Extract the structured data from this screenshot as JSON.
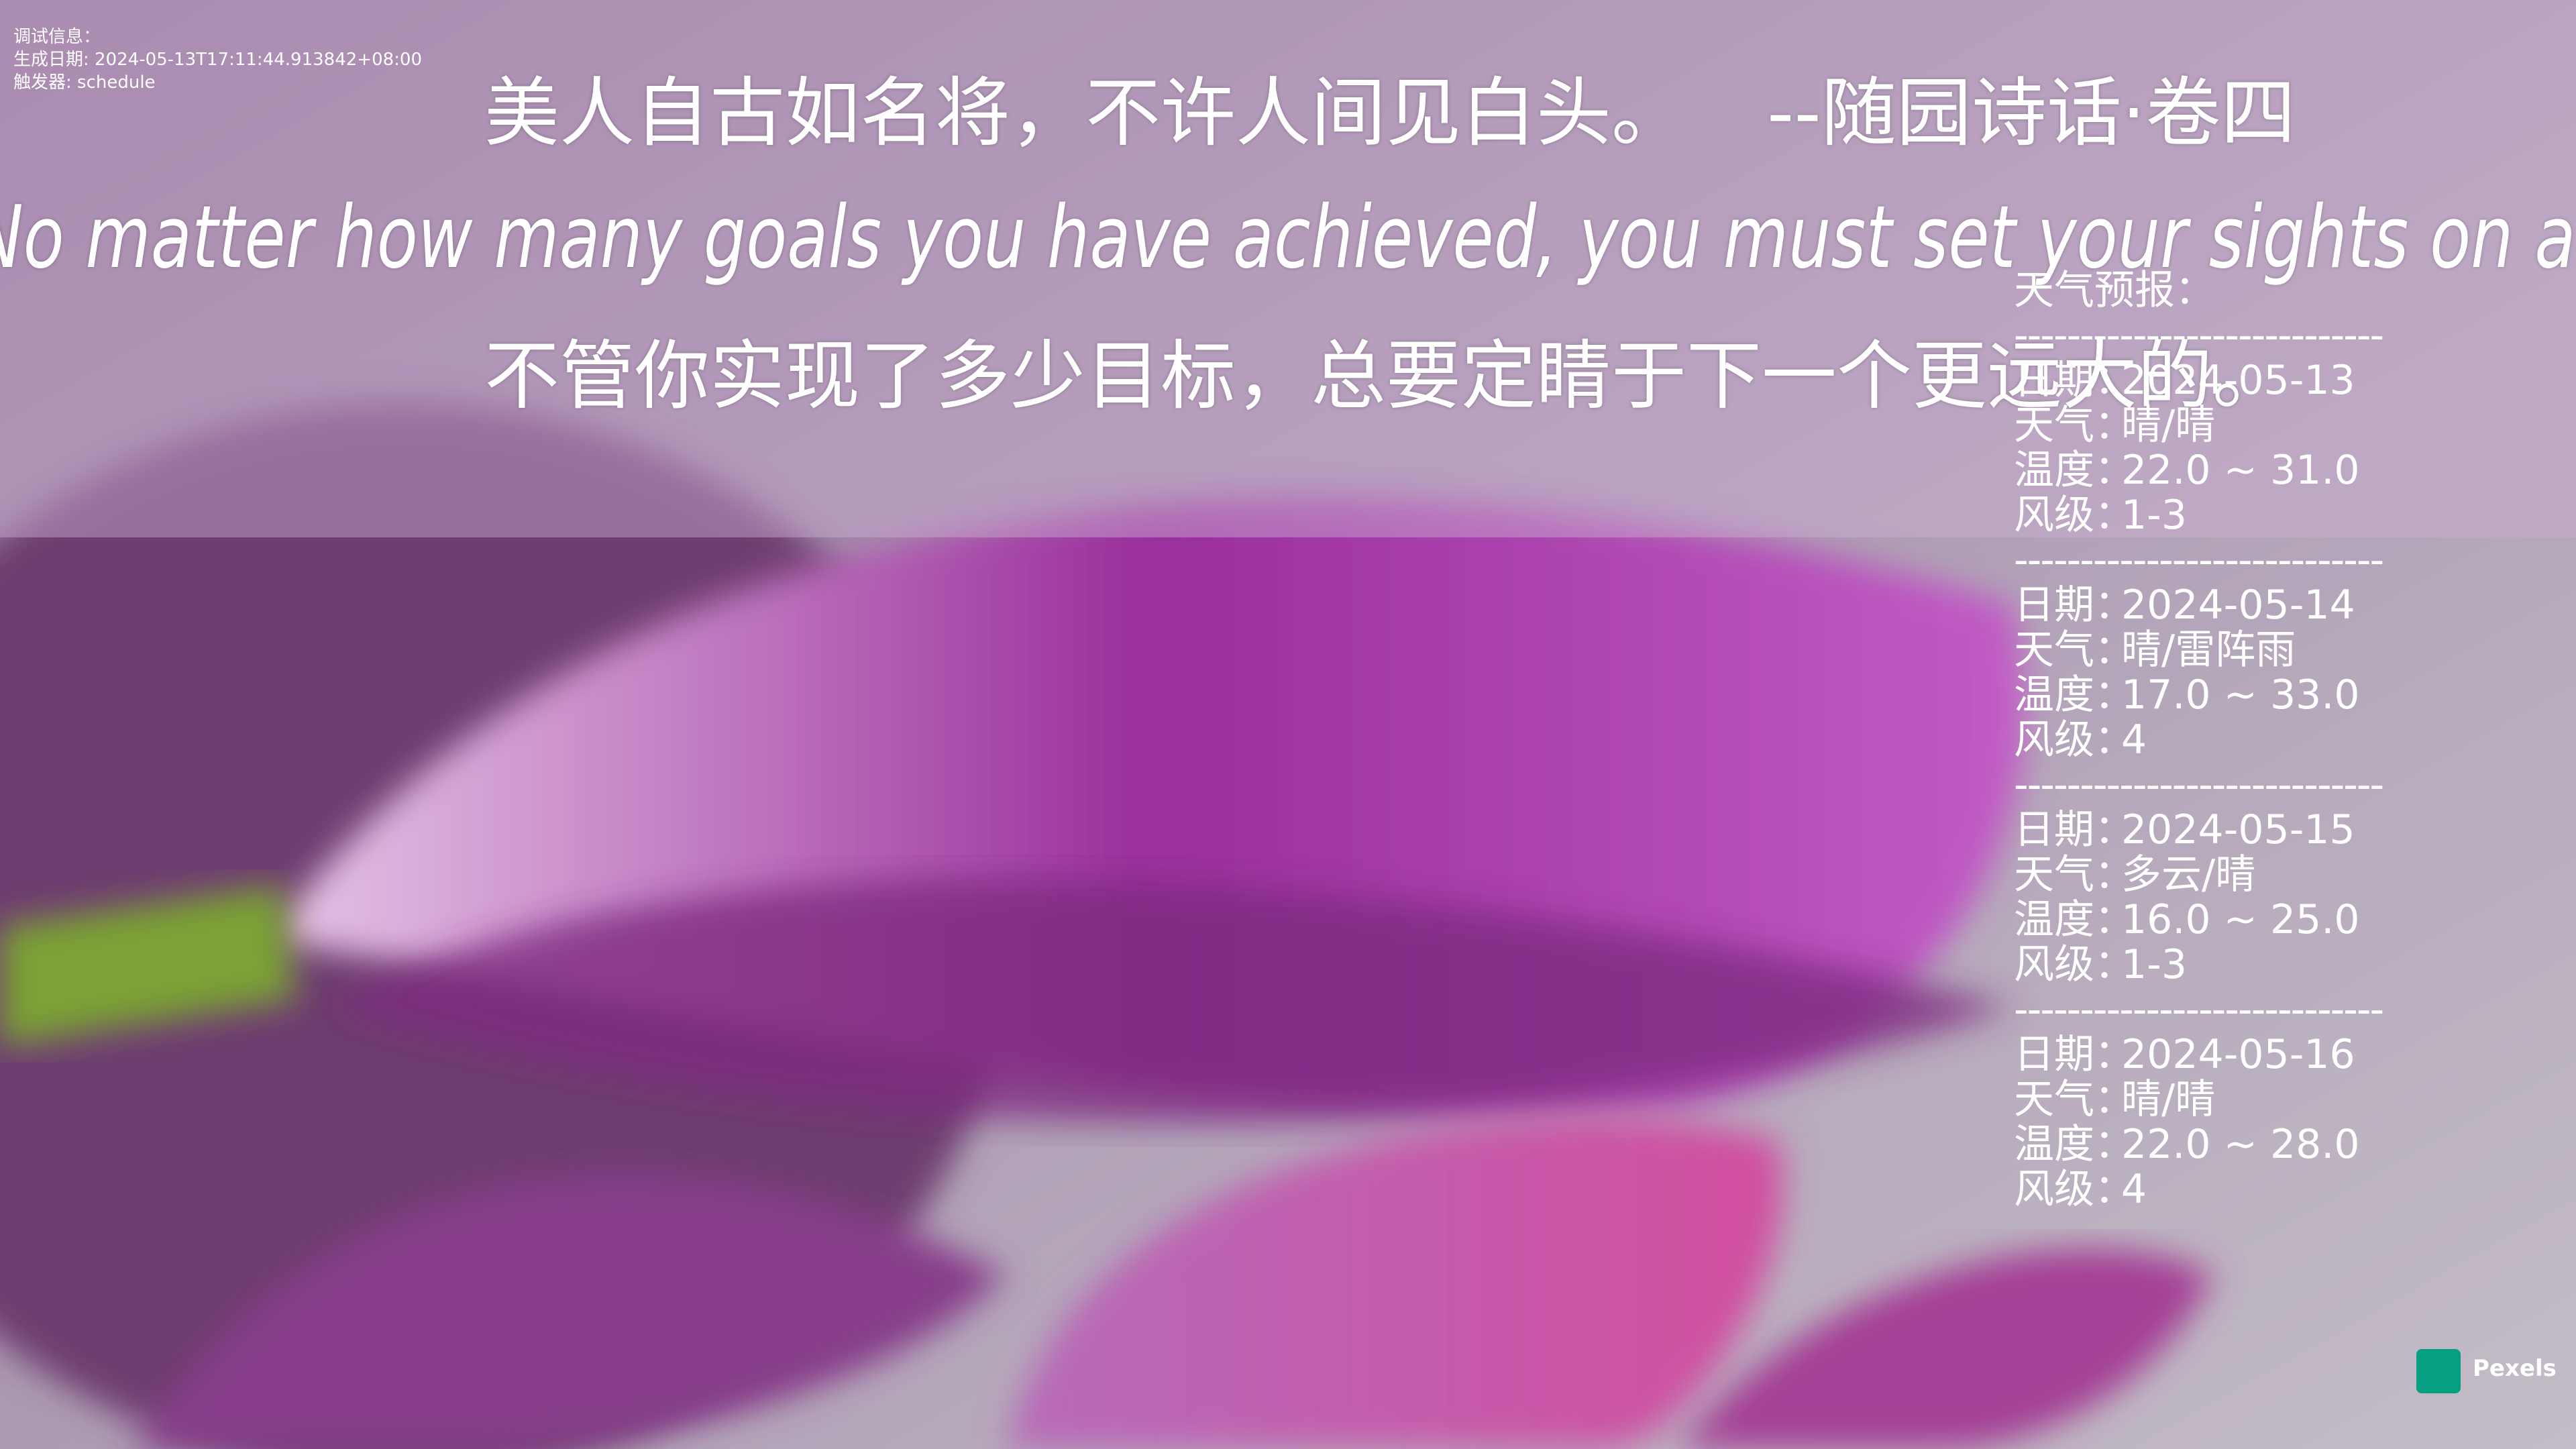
{
  "debug": {
    "lines": [
      "调试信息：",
      "生成日期: 2024-05-13T17:11:44.913842+08:00",
      "触发器: schedule"
    ]
  },
  "quote": {
    "text": "美人自古如名将，不许人间见白头。",
    "source": "--随园诗话·卷四",
    "english": "No matter how many goals you have achieved, you must set your sights on a higher one.",
    "translation": "不管你实现了多少目标，总要定睛于下一个更远大的。"
  },
  "weather": {
    "title": "天气预报：",
    "separator": "----------------------------",
    "labels": {
      "date": "日期：",
      "weather": "天气：",
      "temp": "温度：",
      "wind": "风级："
    },
    "days": [
      {
        "date": "2024-05-13",
        "weather": "晴/晴",
        "temp": "22.0 ~ 31.0",
        "wind": "1-3"
      },
      {
        "date": "2024-05-14",
        "weather": "晴/雷阵雨",
        "temp": "17.0 ~ 33.0",
        "wind": "4"
      },
      {
        "date": "2024-05-15",
        "weather": "多云/晴",
        "temp": "16.0 ~ 25.0",
        "wind": "1-3"
      },
      {
        "date": "2024-05-16",
        "weather": "晴/晴",
        "temp": "22.0 ~ 28.0",
        "wind": "4"
      }
    ]
  },
  "credit": {
    "text": "Pexels"
  }
}
